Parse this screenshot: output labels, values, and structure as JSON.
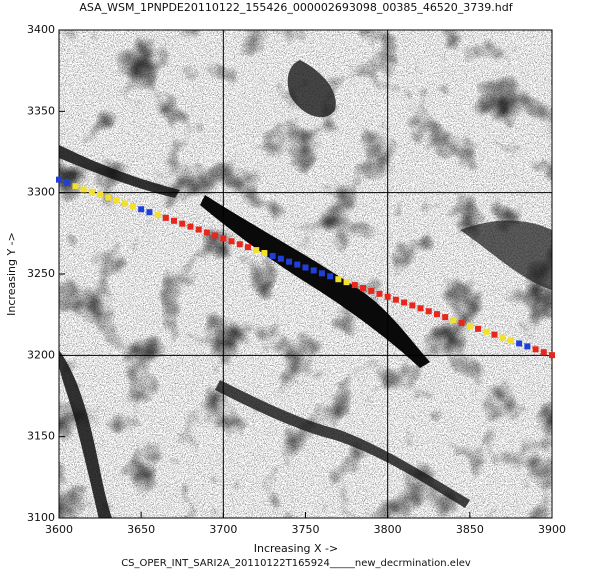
{
  "chart_data": {
    "type": "scatter",
    "title": "ASA_WSM_1PNPDE20110122_155426_000002693098_00385_46520_3739.hdf",
    "x_label": "Increasing X ->",
    "y_label": "Increasing Y ->",
    "footer": "CS_OPER_INT_SARI2A_20110122T165924_____new_decrmination.elev",
    "xlim": [
      3600,
      3900
    ],
    "ylim": [
      3100,
      3400
    ],
    "xticks": [
      3600,
      3650,
      3700,
      3750,
      3800,
      3850,
      3900
    ],
    "yticks": [
      3100,
      3150,
      3200,
      3250,
      3300,
      3350,
      3400
    ],
    "xgrid": [
      3700,
      3800
    ],
    "ygrid": [
      3200,
      3300
    ],
    "series": [
      {
        "color": "#1f3fd8",
        "x": [
          3600,
          3605,
          3650,
          3655,
          3730,
          3735,
          3740,
          3745,
          3750,
          3755,
          3760,
          3765,
          3880,
          3885
        ],
        "values": [
          3308,
          3306,
          3289.8,
          3288,
          3261.1,
          3259.4,
          3257.6,
          3255.8,
          3254,
          3252.2,
          3250.4,
          3248.6,
          3207.3,
          3205.5
        ]
      },
      {
        "color": "#f2e02a",
        "x": [
          3610,
          3615,
          3620,
          3625,
          3630,
          3635,
          3640,
          3645,
          3660,
          3720,
          3725,
          3770,
          3775,
          3840,
          3850,
          3860,
          3870,
          3875
        ],
        "values": [
          3304,
          3302,
          3300.5,
          3298.8,
          3297,
          3295.2,
          3293.4,
          3291.6,
          3286.2,
          3264.7,
          3262.9,
          3246.8,
          3245,
          3221.7,
          3218.1,
          3214.5,
          3210.9,
          3209.1
        ]
      },
      {
        "color": "#e8271c",
        "x": [
          3665,
          3670,
          3675,
          3680,
          3685,
          3690,
          3695,
          3700,
          3705,
          3710,
          3715,
          3780,
          3785,
          3790,
          3795,
          3800,
          3805,
          3810,
          3815,
          3820,
          3825,
          3830,
          3835,
          3845,
          3855,
          3865,
          3890,
          3895,
          3900
        ],
        "values": [
          3284.5,
          3282.7,
          3280.9,
          3279.1,
          3277.3,
          3275.5,
          3273.7,
          3271.9,
          3270.1,
          3268.3,
          3266.5,
          3243.2,
          3241.4,
          3239.6,
          3237.8,
          3236,
          3234.2,
          3232.5,
          3230.7,
          3228.9,
          3227.1,
          3225.3,
          3223.5,
          3219.9,
          3216.3,
          3212.7,
          3203.7,
          3201.9,
          3200.1
        ]
      }
    ]
  }
}
